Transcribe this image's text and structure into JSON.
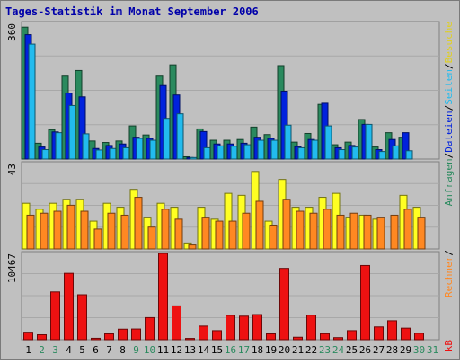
{
  "chart_data": {
    "type": "bar",
    "title": "Tages-Statistik im Monat September 2006",
    "categories": [
      "1",
      "2",
      "3",
      "4",
      "5",
      "6",
      "7",
      "8",
      "9",
      "10",
      "11",
      "12",
      "13",
      "14",
      "15",
      "16",
      "17",
      "18",
      "19",
      "20",
      "21",
      "22",
      "23",
      "24",
      "25",
      "26",
      "27",
      "28",
      "29",
      "30",
      "31"
    ],
    "weekend_days": [
      "2",
      "3",
      "9",
      "10",
      "16",
      "17",
      "23",
      "24",
      "30",
      "31"
    ],
    "panels": [
      {
        "name": "top",
        "max_label": "360",
        "ylim": [
          0,
          360
        ],
        "grid": true,
        "right_labels": [
          "Anfragen",
          "/",
          "Dateien",
          "/",
          "Seiten",
          "/",
          "Besuche"
        ],
        "series": [
          {
            "name": "Anfragen",
            "color": "#2a8a5e",
            "values": [
              350,
              42,
              78,
              220,
              235,
              48,
              44,
              48,
              88,
              64,
              220,
              250,
              6,
              80,
              50,
              50,
              52,
              85,
              65,
              248,
              45,
              68,
              145,
              38,
              45,
              105,
              32,
              70,
              58,
              0,
              0
            ]
          },
          {
            "name": "Dateien",
            "color": "#0022dd",
            "values": [
              330,
              32,
              72,
              175,
              165,
              28,
              36,
              40,
              58,
              55,
              195,
              170,
              4,
              73,
              40,
              40,
              42,
              58,
              55,
              180,
              33,
              52,
              148,
              30,
              36,
              92,
              25,
              52,
              70,
              0,
              0
            ]
          },
          {
            "name": "Seiten",
            "color": "#22bbee",
            "values": [
              305,
              25,
              70,
              142,
              67,
              24,
              28,
              30,
              55,
              50,
              108,
              120,
              4,
              30,
              35,
              34,
              38,
              50,
              50,
              90,
              30,
              50,
              88,
              25,
              32,
              92,
              20,
              35,
              22,
              0,
              0
            ]
          }
        ]
      },
      {
        "name": "middle",
        "max_label": "43",
        "ylim": [
          0,
          43
        ],
        "grid": true,
        "right_labels": [
          "Rechner",
          "/"
        ],
        "series": [
          {
            "name": "Besuche",
            "color": "#ffff22",
            "values": [
              23,
              20,
              23,
              25,
              25,
              14,
              23,
              21,
              30,
              16,
              23,
              21,
              3,
              21,
              15,
              28,
              27,
              39,
              14,
              35,
              21,
              21,
              26,
              28,
              16,
              17,
              15,
              0,
              27,
              21,
              0
            ]
          },
          {
            "name": "Rechner",
            "color": "#ff8822",
            "values": [
              17,
              18,
              19,
              22,
              19,
              10,
              18,
              17,
              26,
              11,
              20,
              15,
              2,
              16,
              14,
              14,
              18,
              24,
              12,
              25,
              19,
              18,
              20,
              17,
              18,
              17,
              16,
              17,
              20,
              16,
              0
            ]
          }
        ]
      },
      {
        "name": "bottom",
        "max_label": "10467",
        "ylim": [
          0,
          10467
        ],
        "grid": true,
        "right_labels": [
          "kB"
        ],
        "series": [
          {
            "name": "kB",
            "color": "#ee1111",
            "values": [
              910,
              600,
              5800,
              8050,
              5450,
              170,
              710,
              1280,
              1300,
              2680,
              10467,
              4100,
              155,
              1650,
              1100,
              2960,
              2860,
              3050,
              710,
              8650,
              300,
              2980,
              730,
              250,
              1100,
              9000,
              1550,
              2300,
              1400,
              780,
              0
            ]
          }
        ]
      }
    ]
  }
}
